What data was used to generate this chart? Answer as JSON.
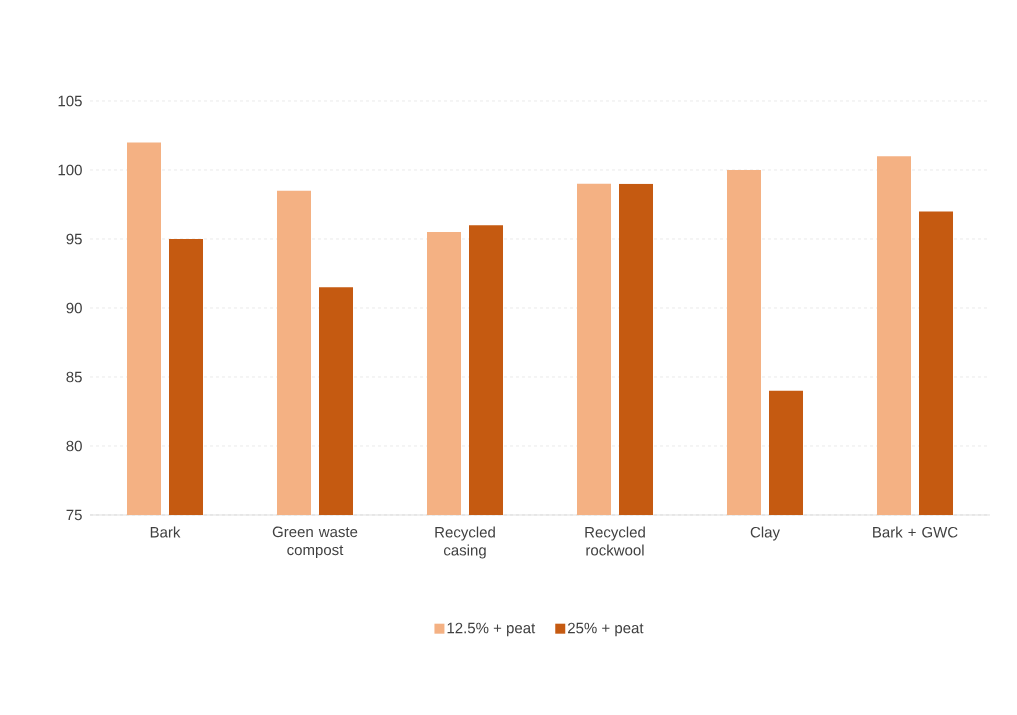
{
  "chart_data": {
    "type": "bar",
    "categories": [
      "Bark",
      "Green waste compost",
      "Recycled casing",
      "Recycled rockwool",
      "Clay",
      "Bark + GWC"
    ],
    "series": [
      {
        "name": "12.5% + peat",
        "color": "#f4b183",
        "values": [
          102,
          98.5,
          95.5,
          99,
          100,
          101
        ]
      },
      {
        "name": "25% + peat",
        "color": "#c55a11",
        "values": [
          95,
          91.5,
          96,
          99,
          84,
          97
        ]
      }
    ],
    "ylim": [
      75,
      105
    ],
    "yticks": [
      75,
      80,
      85,
      90,
      95,
      100,
      105
    ],
    "grid": "y",
    "legend": "bottom"
  }
}
